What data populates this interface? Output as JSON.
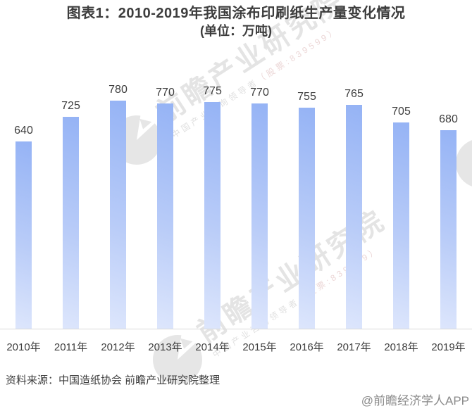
{
  "title": {
    "line1": "图表1：2010-2019年我国涂布印刷纸生产量变化情况",
    "line2": "(单位：万吨)"
  },
  "chart_data": {
    "type": "bar",
    "title": "2010-2019年我国涂布印刷纸生产量变化情况",
    "unit": "万吨",
    "categories": [
      "2010年",
      "2011年",
      "2012年",
      "2013年",
      "2014年",
      "2015年",
      "2016年",
      "2017年",
      "2018年",
      "2019年"
    ],
    "values": [
      640,
      725,
      780,
      770,
      775,
      770,
      755,
      765,
      705,
      680
    ],
    "xlabel": "",
    "ylabel": "",
    "ylim": [
      0,
      780
    ],
    "grid": false,
    "legend": "none",
    "data_labels": true,
    "bar_color_top": "#95b3f5",
    "bar_color_bottom": "#dde6fc"
  },
  "watermark": {
    "logo": "qianzhan-logo",
    "text": "前瞻产业研究院",
    "subtext_cn": "中国产业咨询领导者",
    "subtext_stock": "（股票:839599）"
  },
  "source": {
    "label": "资料来源：中国造纸协会 前瞻产业研究院整理"
  },
  "credit": {
    "label": "@前瞻经济学人APP"
  },
  "colors": {
    "title_text": "#3d3d3d",
    "label_text": "#3d3d3d",
    "axis_line": "#d9d9d9",
    "watermark_gray": "#e4e4e4",
    "credit_gray": "#8b8b8b"
  }
}
